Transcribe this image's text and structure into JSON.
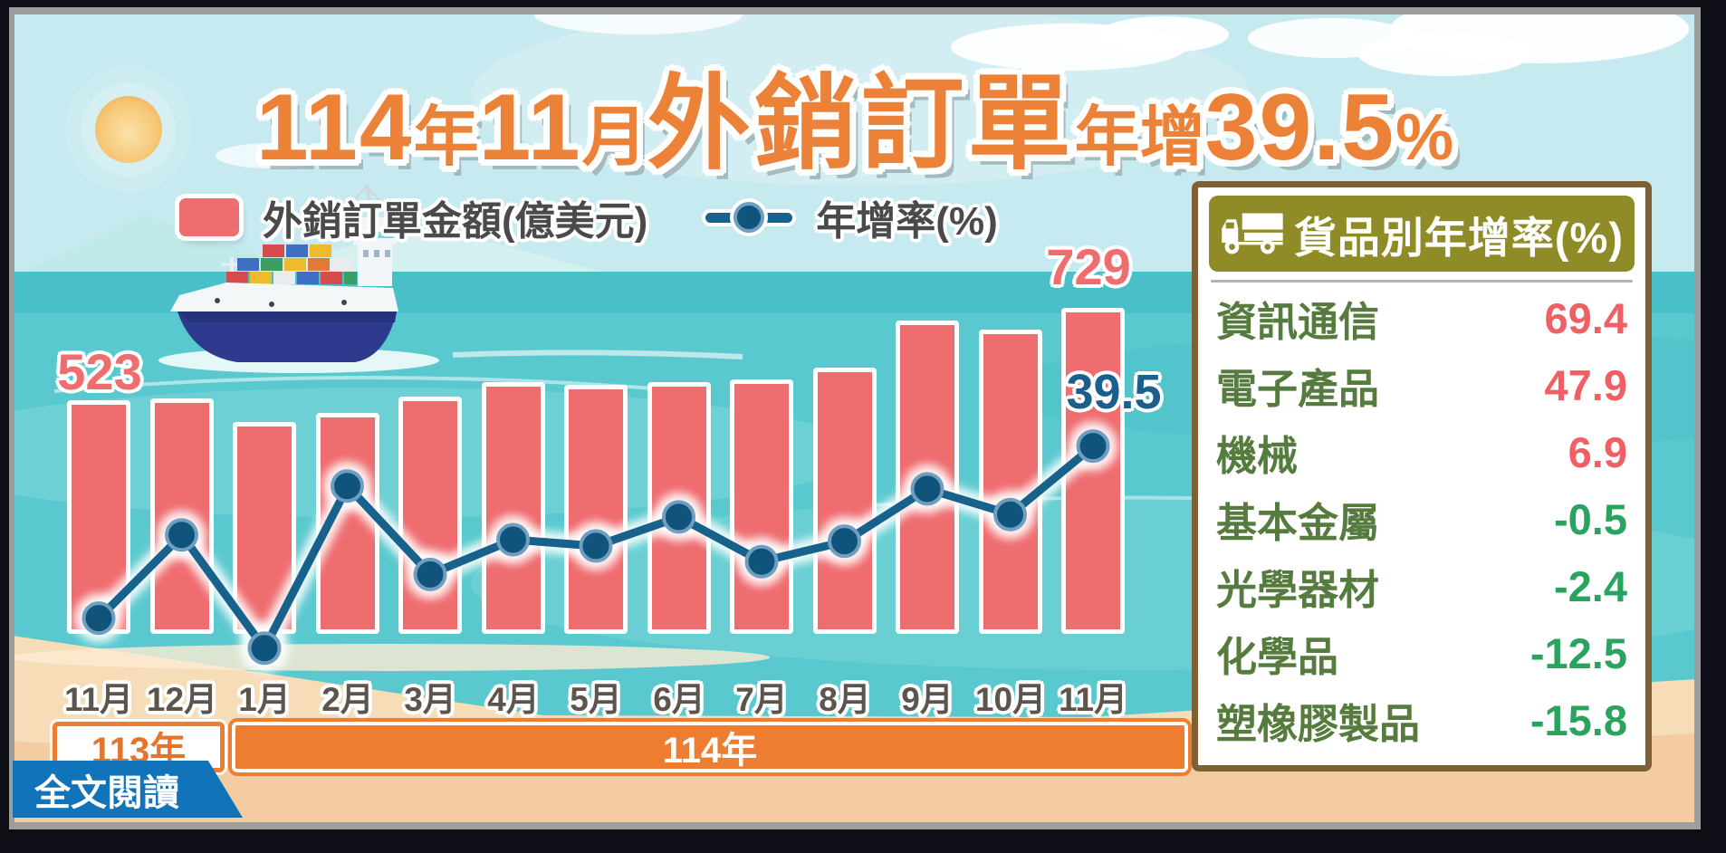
{
  "title": {
    "year": "114",
    "year_unit": "年",
    "month": "11",
    "month_unit": "月",
    "subject": "外銷訂單",
    "growth_prefix": "年增",
    "growth_value": "39.5",
    "growth_unit": "%"
  },
  "legend": {
    "bar_label": "外銷訂單金額(億美元)",
    "line_label": "年增率(%)"
  },
  "chart_data": {
    "type": "combo",
    "categories": [
      "11月",
      "12月",
      "1月",
      "2月",
      "3月",
      "4月",
      "5月",
      "6月",
      "7月",
      "8月",
      "9月",
      "10月",
      "11月"
    ],
    "year_groups": [
      {
        "label": "113年",
        "months": 2
      },
      {
        "label": "114年",
        "months": 11
      }
    ],
    "series": [
      {
        "name": "外銷訂單金額(億美元)",
        "type": "bar",
        "color": "#ef6c6f",
        "values": [
          523,
          526,
          475,
          495,
          531,
          564,
          558,
          564,
          569,
          595,
          702,
          681,
          729
        ]
      },
      {
        "name": "年增率(%)",
        "type": "line",
        "color": "#17628c",
        "values": [
          3.3,
          20.8,
          -3.0,
          31.1,
          12.5,
          19.8,
          18.5,
          24.6,
          15.2,
          19.5,
          30.5,
          25.1,
          39.5
        ]
      }
    ],
    "data_labels": {
      "first_bar": "523",
      "last_bar": "729",
      "last_point": "39.5"
    },
    "ylabel": "",
    "xlabel": "",
    "grid": false,
    "legend_position": "top"
  },
  "panel": {
    "header": "貨品別年增率(%)",
    "icon": "truck-icon",
    "rows": [
      {
        "label": "資訊通信",
        "value": "69.4"
      },
      {
        "label": "電子產品",
        "value": "47.9"
      },
      {
        "label": "機械",
        "value": "6.9"
      },
      {
        "label": "基本金屬",
        "value": "-0.5"
      },
      {
        "label": "光學器材",
        "value": "-2.4"
      },
      {
        "label": "化學品",
        "value": "-12.5"
      },
      {
        "label": "塑橡膠製品",
        "value": "-15.8"
      }
    ]
  },
  "footer": {
    "read_more": "全文閱讀"
  },
  "colors": {
    "title_orange": "#ec8138",
    "bar_red": "#ef6c6f",
    "line_blue": "#17628c",
    "value_positive": "#ef5f63",
    "value_negative": "#29a35e",
    "label_green": "#567b3e",
    "panel_header_bg": "#8f8b26",
    "panel_border": "#7d6033",
    "year_bar_orange": "#ed7d31",
    "button_blue": "#1173b9"
  }
}
